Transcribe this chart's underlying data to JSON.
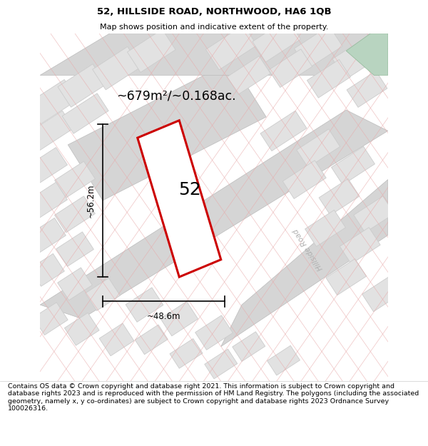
{
  "title": "52, HILLSIDE ROAD, NORTHWOOD, HA6 1QB",
  "subtitle": "Map shows position and indicative extent of the property.",
  "footer": "Contains OS data © Crown copyright and database right 2021. This information is subject to Crown copyright and database rights 2023 and is reproduced with the permission of HM Land Registry. The polygons (including the associated geometry, namely x, y co-ordinates) are subject to Crown copyright and database rights 2023 Ordnance Survey 100026316.",
  "area_label": "~679m²/~0.168ac.",
  "width_label": "~48.6m",
  "height_label": "~56.2m",
  "number_label": "52",
  "map_bg": "#f2f2f2",
  "block_color": "#e2e2e2",
  "block_edge": "#cccccc",
  "road_color": "#d5d5d5",
  "road_edge": "#bbbbbb",
  "plot_stroke": "#cc0000",
  "plot_fill": "#ffffff",
  "cadastral_color": "#e8aaaa",
  "road_label_color": "#b0b0b0",
  "green_color": "#b8d4c0",
  "dim_color": "#111111",
  "title_fontsize": 9.5,
  "subtitle_fontsize": 8.0,
  "footer_fontsize": 6.8,
  "area_fontsize": 12.5,
  "number_fontsize": 18,
  "dim_fontsize": 8.5,
  "road_label_fontsize": 7.5
}
